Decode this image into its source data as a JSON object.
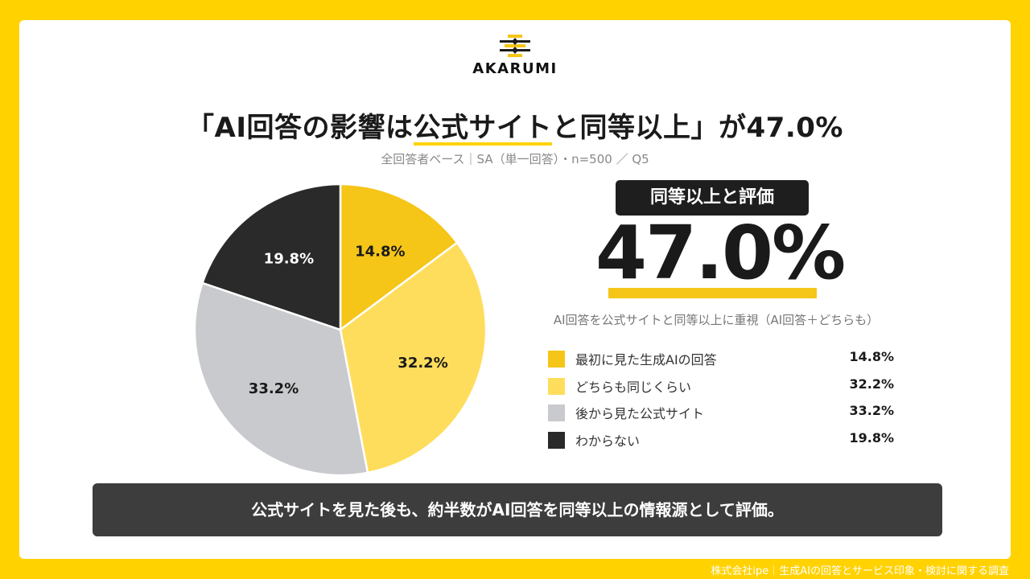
{
  "brand": {
    "name": "AKARUMI",
    "logo_icon": "akarumi-logo-icon"
  },
  "header": {
    "title_prefix": "「AI回答の影響は",
    "title_highlight": "公式サイト",
    "title_suffix": "と同等以上」が47.0%",
    "subtitle": "全回答者ベース｜SA（単一回答）・n=500 ／ Q5"
  },
  "highlight": {
    "badge": "同等以上と評価",
    "value": "47.0%",
    "description": "AI回答を公式サイトと同等以上に重視（AI回答＋どちらも）"
  },
  "colors": {
    "background": "#FFD200",
    "accent": "#F5C518",
    "slice_1": "#F5C518",
    "slice_2": "#FFDD5C",
    "slice_3": "#C8CACD",
    "slice_4": "#2A2A2A",
    "bottom_bar": "#3D3D3D"
  },
  "chart_data": {
    "type": "pie",
    "categories": [
      "最初に見た生成AIの回答",
      "どちらも同じくらい",
      "後から見た公式サイト",
      "わからない"
    ],
    "values": [
      14.8,
      32.2,
      33.2,
      19.8
    ],
    "labels": [
      "14.8%",
      "32.2%",
      "33.2%",
      "19.8%"
    ],
    "start": "top-clockwise",
    "legend_position": "right"
  },
  "conclusion": "公式サイトを見た後も、約半数がAI回答を同等以上の情報源として評価。",
  "footer": "株式会社ipe｜生成AIの回答とサービス印象・検討に関する調査"
}
